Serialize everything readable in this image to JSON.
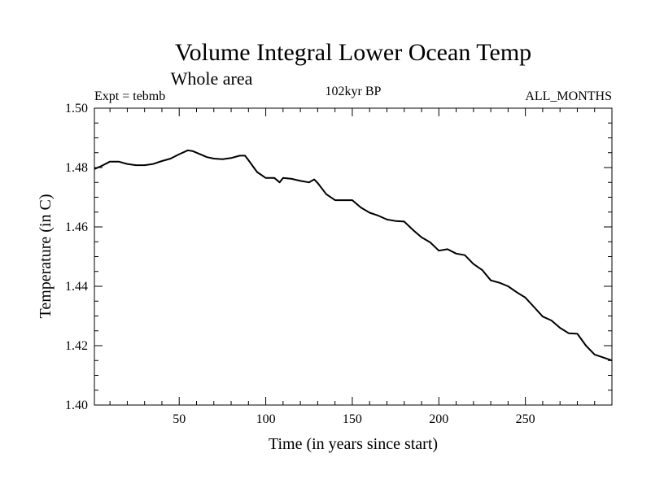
{
  "chart_data": {
    "type": "line",
    "title": "Volume Integral Lower Ocean Temp",
    "subtitle": "Whole area",
    "left_label": "Expt = tebmb",
    "center_label": "102kyr BP",
    "right_label": "ALL_MONTHS",
    "xlabel": "Time (in years since start)",
    "ylabel": "Temperature (in C)",
    "xlim": [
      1,
      300
    ],
    "ylim": [
      1.4,
      1.5
    ],
    "x_ticks": [
      50,
      100,
      150,
      200,
      250
    ],
    "y_ticks": [
      "1.40",
      "1.42",
      "1.44",
      "1.46",
      "1.48",
      "1.50"
    ],
    "grid": false,
    "series": [
      {
        "name": "Volume integral lower ocean temperature",
        "color": "#000000",
        "x": [
          1,
          5,
          10,
          15,
          20,
          25,
          30,
          35,
          40,
          45,
          50,
          55,
          58,
          62,
          66,
          70,
          75,
          80,
          85,
          88,
          90,
          95,
          100,
          105,
          108,
          110,
          115,
          120,
          125,
          128,
          130,
          135,
          140,
          145,
          150,
          155,
          160,
          165,
          170,
          175,
          180,
          185,
          190,
          195,
          200,
          205,
          210,
          215,
          220,
          225,
          230,
          235,
          240,
          245,
          250,
          255,
          260,
          265,
          270,
          275,
          280,
          285,
          290,
          295,
          300
        ],
        "values": [
          1.4795,
          1.4805,
          1.482,
          1.482,
          1.4812,
          1.4808,
          1.4808,
          1.4812,
          1.4822,
          1.483,
          1.4845,
          1.4858,
          1.4855,
          1.4845,
          1.4835,
          1.483,
          1.4828,
          1.4832,
          1.484,
          1.484,
          1.4825,
          1.4785,
          1.4765,
          1.4765,
          1.475,
          1.4765,
          1.4762,
          1.4755,
          1.475,
          1.476,
          1.4748,
          1.471,
          1.469,
          1.469,
          1.469,
          1.4665,
          1.4648,
          1.4638,
          1.4625,
          1.462,
          1.4618,
          1.459,
          1.4565,
          1.4548,
          1.452,
          1.4525,
          1.451,
          1.4505,
          1.4475,
          1.4455,
          1.442,
          1.4412,
          1.44,
          1.438,
          1.4362,
          1.433,
          1.4298,
          1.4285,
          1.426,
          1.4242,
          1.424,
          1.42,
          1.417,
          1.416,
          1.415
        ]
      }
    ]
  }
}
